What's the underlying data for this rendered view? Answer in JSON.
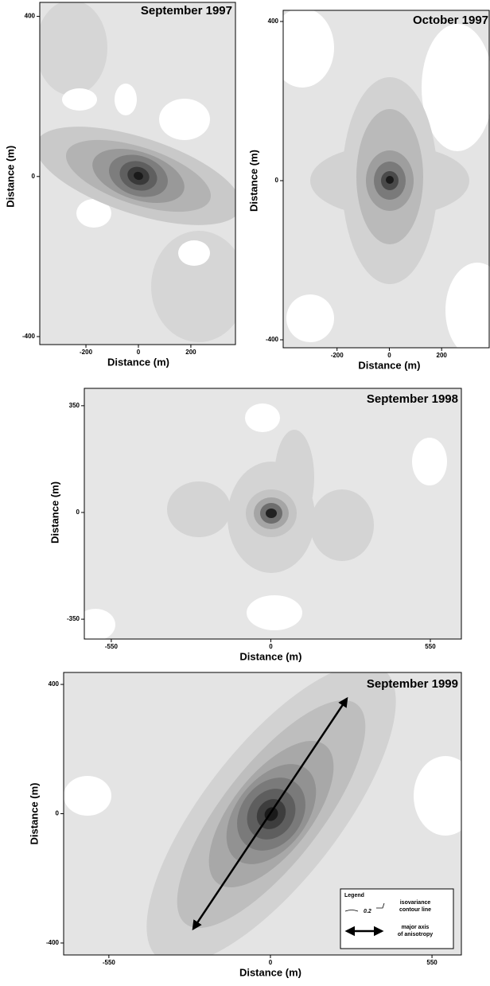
{
  "chart_data": [
    {
      "type": "contour",
      "title": "September 1997",
      "xlabel": "Distance (m)",
      "ylabel": "Distance (m)",
      "xlim": [
        -376,
        370
      ],
      "ylim": [
        -420,
        435
      ],
      "xticks": [
        -200,
        0,
        200
      ],
      "yticks": [
        -400,
        0,
        400
      ]
    },
    {
      "type": "contour",
      "title": "October 1997",
      "xlabel": "Distance (m)",
      "ylabel": "Distance (m)",
      "xlim": [
        -406,
        382
      ],
      "ylim": [
        -420,
        428
      ],
      "xticks": [
        -200,
        0,
        200
      ],
      "yticks": [
        -400,
        0,
        400
      ]
    },
    {
      "type": "contour",
      "title": "September 1998",
      "xlabel": "Distance (m)",
      "ylabel": "Distance (m)",
      "xlim": [
        -643,
        657
      ],
      "ylim": [
        -415,
        407
      ],
      "xticks": [
        -550,
        0,
        550
      ],
      "yticks": [
        -350,
        0,
        350
      ]
    },
    {
      "type": "contour",
      "title": "September 1999",
      "xlabel": "Distance (m)",
      "ylabel": "Distance (m)",
      "xlim": [
        -704,
        650
      ],
      "ylim": [
        -437,
        437
      ],
      "xticks": [
        -550,
        0,
        550
      ],
      "yticks": [
        -400,
        0,
        400
      ],
      "legend": {
        "title": "Legend",
        "contour_value": "0.2",
        "contour_text": [
          "isovariance",
          "contour line"
        ],
        "axis_text": [
          "major axis",
          "of anisotropy"
        ]
      }
    }
  ]
}
